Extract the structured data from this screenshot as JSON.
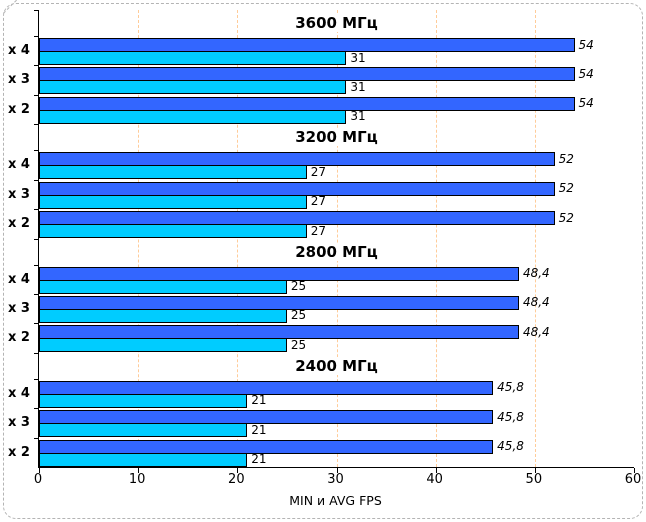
{
  "chart_data": {
    "type": "bar",
    "orientation": "horizontal",
    "title": "",
    "xlabel": "MIN и AVG FPS",
    "xlim": [
      0,
      60
    ],
    "xticks": [
      0,
      10,
      20,
      30,
      40,
      50,
      60
    ],
    "grid": {
      "axis": "x",
      "style": "dashed",
      "color": "#ffcc99",
      "at": [
        10,
        20,
        30,
        40,
        50
      ]
    },
    "series": [
      {
        "name": "AVG FPS",
        "color": "#3366ff",
        "label_style": "italic"
      },
      {
        "name": "MIN FPS",
        "color": "#00ccff",
        "label_style": "normal"
      }
    ],
    "groups": [
      {
        "title": "3600 МГц",
        "rows": [
          {
            "label": "x 4",
            "avg": 54,
            "avg_label": "54",
            "min": 31,
            "min_label": "31"
          },
          {
            "label": "x 3",
            "avg": 54,
            "avg_label": "54",
            "min": 31,
            "min_label": "31"
          },
          {
            "label": "x 2",
            "avg": 54,
            "avg_label": "54",
            "min": 31,
            "min_label": "31"
          }
        ]
      },
      {
        "title": "3200 МГц",
        "rows": [
          {
            "label": "x 4",
            "avg": 52,
            "avg_label": "52",
            "min": 27,
            "min_label": "27"
          },
          {
            "label": "x 3",
            "avg": 52,
            "avg_label": "52",
            "min": 27,
            "min_label": "27"
          },
          {
            "label": "x 2",
            "avg": 52,
            "avg_label": "52",
            "min": 27,
            "min_label": "27"
          }
        ]
      },
      {
        "title": "2800 МГц",
        "rows": [
          {
            "label": "x 4",
            "avg": 48.4,
            "avg_label": "48,4",
            "min": 25,
            "min_label": "25"
          },
          {
            "label": "x 3",
            "avg": 48.4,
            "avg_label": "48,4",
            "min": 25,
            "min_label": "25"
          },
          {
            "label": "x 2",
            "avg": 48.4,
            "avg_label": "48,4",
            "min": 25,
            "min_label": "25"
          }
        ]
      },
      {
        "title": "2400 МГц",
        "rows": [
          {
            "label": "x 4",
            "avg": 45.8,
            "avg_label": "45,8",
            "min": 21,
            "min_label": "21"
          },
          {
            "label": "x 3",
            "avg": 45.8,
            "avg_label": "45,8",
            "min": 21,
            "min_label": "21"
          },
          {
            "label": "x 2",
            "avg": 45.8,
            "avg_label": "45,8",
            "min": 21,
            "min_label": "21"
          }
        ]
      }
    ]
  }
}
